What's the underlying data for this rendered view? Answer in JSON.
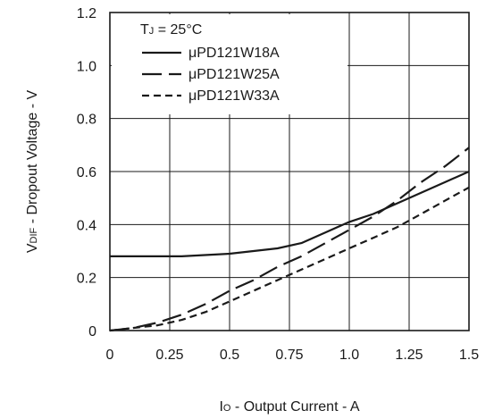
{
  "chart_data": {
    "type": "line",
    "title": "",
    "xlabel": {
      "main": "I",
      "sub": "O",
      "rest": " - Output Current - A"
    },
    "ylabel": {
      "main": "V",
      "sub": "DIF",
      "rest": " - Dropout Voltage - V"
    },
    "xlim": [
      0,
      1.5
    ],
    "ylim": [
      0,
      1.2
    ],
    "xticks": [
      "0",
      "0.25",
      "0.5",
      "0.75",
      "1.0",
      "1.25",
      "1.5"
    ],
    "yticks": [
      "0",
      "0.2",
      "0.4",
      "0.6",
      "0.8",
      "1.0",
      "1.2"
    ],
    "grid": true,
    "legend_position": "top-left",
    "annotation": {
      "main": "T",
      "sub": "J",
      "rest": " = 25°C"
    },
    "series": [
      {
        "name": "μPD121W18A",
        "style": "solid",
        "x": [
          0,
          0.1,
          0.3,
          0.5,
          0.7,
          0.8,
          0.9,
          1.0,
          1.1,
          1.2,
          1.3,
          1.4,
          1.5
        ],
        "y": [
          0.28,
          0.28,
          0.28,
          0.29,
          0.31,
          0.33,
          0.37,
          0.41,
          0.44,
          0.48,
          0.52,
          0.56,
          0.6
        ]
      },
      {
        "name": "μPD121W25A",
        "style": "longdash",
        "x": [
          0,
          0.1,
          0.2,
          0.3,
          0.4,
          0.5,
          0.6,
          0.7,
          0.8,
          0.9,
          1.0,
          1.1,
          1.2,
          1.3,
          1.4,
          1.5
        ],
        "y": [
          0.0,
          0.01,
          0.03,
          0.06,
          0.1,
          0.15,
          0.19,
          0.24,
          0.28,
          0.33,
          0.38,
          0.43,
          0.49,
          0.56,
          0.62,
          0.69
        ]
      },
      {
        "name": "μPD121W33A",
        "style": "shortdash",
        "x": [
          0,
          0.1,
          0.2,
          0.3,
          0.4,
          0.5,
          0.6,
          0.7,
          0.8,
          0.9,
          1.0,
          1.1,
          1.2,
          1.3,
          1.4,
          1.5
        ],
        "y": [
          0.0,
          0.01,
          0.02,
          0.04,
          0.07,
          0.11,
          0.15,
          0.19,
          0.23,
          0.27,
          0.31,
          0.35,
          0.39,
          0.44,
          0.49,
          0.54
        ]
      }
    ]
  }
}
